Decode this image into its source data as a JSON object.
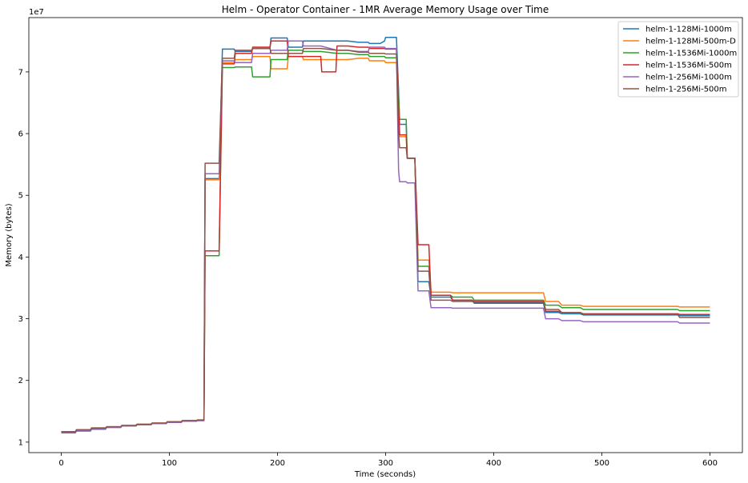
{
  "chart_data": {
    "type": "line",
    "title": "Helm - Operator Container - 1MR Average Memory Usage over Time",
    "xlabel": "Time (seconds)",
    "ylabel": "Memory (bytes)",
    "y_offset_label": "1e7",
    "xlim": [
      -30,
      630
    ],
    "ylim": [
      0.83,
      7.88
    ],
    "x_ticks": [
      0,
      100,
      200,
      300,
      400,
      500,
      600
    ],
    "y_ticks": [
      1,
      2,
      3,
      4,
      5,
      6,
      7
    ],
    "grid": false,
    "legend_position": "top-right",
    "series": [
      {
        "name": "helm-1-128Mi-1000m",
        "color": "#1f77b4",
        "x": [
          0,
          13,
          14,
          27,
          28,
          41,
          42,
          55,
          56,
          69,
          70,
          83,
          84,
          97,
          98,
          111,
          112,
          125,
          126,
          132,
          133,
          146,
          149,
          160,
          161,
          176,
          177,
          193,
          194,
          209,
          210,
          223,
          224,
          240,
          255,
          265,
          275,
          284,
          285,
          295,
          299,
          300,
          310,
          312,
          313,
          319,
          320,
          327,
          330,
          340,
          342,
          360,
          362,
          380,
          382,
          400,
          446,
          448,
          460,
          463,
          480,
          483,
          570,
          572,
          600
        ],
        "y": [
          1.15,
          1.15,
          1.18,
          1.18,
          1.21,
          1.21,
          1.24,
          1.24,
          1.26,
          1.26,
          1.28,
          1.28,
          1.3,
          1.3,
          1.32,
          1.32,
          1.34,
          1.34,
          1.35,
          1.35,
          5.27,
          5.27,
          7.37,
          7.37,
          7.33,
          7.33,
          7.38,
          7.38,
          7.55,
          7.55,
          7.4,
          7.4,
          7.5,
          7.5,
          7.5,
          7.5,
          7.48,
          7.48,
          7.46,
          7.46,
          7.5,
          7.56,
          7.56,
          6.7,
          6.15,
          6.15,
          5.6,
          5.6,
          3.6,
          3.6,
          3.35,
          3.35,
          3.3,
          3.3,
          3.25,
          3.25,
          3.25,
          3.1,
          3.1,
          3.08,
          3.08,
          3.06,
          3.06,
          3.05,
          3.05
        ]
      },
      {
        "name": "helm-1-128Mi-500m-D",
        "color": "#ff7f0e",
        "x": [
          0,
          13,
          14,
          27,
          28,
          41,
          42,
          55,
          56,
          69,
          70,
          83,
          84,
          97,
          98,
          111,
          112,
          125,
          126,
          132,
          133,
          146,
          149,
          160,
          161,
          176,
          177,
          193,
          194,
          209,
          210,
          223,
          224,
          240,
          255,
          265,
          275,
          284,
          285,
          299,
          300,
          310,
          312,
          313,
          319,
          320,
          327,
          330,
          340,
          342,
          360,
          362,
          380,
          382,
          400,
          446,
          448,
          460,
          463,
          480,
          483,
          570,
          572,
          600
        ],
        "y": [
          1.17,
          1.17,
          1.2,
          1.2,
          1.23,
          1.23,
          1.25,
          1.25,
          1.27,
          1.27,
          1.29,
          1.29,
          1.31,
          1.31,
          1.33,
          1.33,
          1.35,
          1.35,
          1.36,
          1.36,
          5.25,
          5.25,
          7.15,
          7.15,
          7.2,
          7.2,
          7.25,
          7.25,
          7.05,
          7.05,
          7.25,
          7.25,
          7.2,
          7.2,
          7.2,
          7.2,
          7.22,
          7.22,
          7.18,
          7.18,
          7.15,
          7.15,
          6.6,
          5.95,
          5.95,
          5.6,
          5.6,
          3.95,
          3.95,
          3.43,
          3.43,
          3.42,
          3.42,
          3.42,
          3.42,
          3.42,
          3.28,
          3.28,
          3.22,
          3.22,
          3.2,
          3.2,
          3.19,
          3.19
        ]
      },
      {
        "name": "helm-1-1536Mi-1000m",
        "color": "#2ca02c",
        "x": [
          0,
          13,
          14,
          27,
          28,
          41,
          42,
          55,
          56,
          69,
          70,
          83,
          84,
          97,
          98,
          111,
          112,
          125,
          126,
          132,
          133,
          146,
          149,
          160,
          161,
          176,
          177,
          193,
          194,
          209,
          210,
          223,
          224,
          240,
          255,
          265,
          275,
          284,
          285,
          299,
          300,
          310,
          312,
          313,
          319,
          320,
          327,
          330,
          340,
          342,
          360,
          362,
          380,
          382,
          400,
          446,
          448,
          460,
          463,
          480,
          483,
          570,
          572,
          600
        ],
        "y": [
          1.16,
          1.16,
          1.19,
          1.19,
          1.22,
          1.22,
          1.24,
          1.24,
          1.26,
          1.26,
          1.28,
          1.28,
          1.3,
          1.3,
          1.32,
          1.32,
          1.34,
          1.34,
          1.35,
          1.35,
          4.02,
          4.02,
          7.07,
          7.07,
          7.08,
          7.08,
          6.92,
          6.92,
          7.2,
          7.2,
          7.35,
          7.35,
          7.33,
          7.33,
          7.3,
          7.3,
          7.28,
          7.28,
          7.25,
          7.25,
          7.23,
          7.23,
          6.6,
          6.23,
          6.23,
          5.6,
          5.6,
          3.85,
          3.85,
          3.38,
          3.38,
          3.35,
          3.35,
          3.3,
          3.3,
          3.3,
          3.22,
          3.22,
          3.18,
          3.18,
          3.15,
          3.15,
          3.13,
          3.13
        ]
      },
      {
        "name": "helm-1-1536Mi-500m",
        "color": "#d62728",
        "x": [
          0,
          13,
          14,
          27,
          28,
          41,
          42,
          55,
          56,
          69,
          70,
          83,
          84,
          97,
          98,
          111,
          112,
          125,
          126,
          132,
          133,
          146,
          149,
          160,
          161,
          176,
          177,
          193,
          194,
          209,
          210,
          223,
          224,
          240,
          241,
          254,
          255,
          265,
          275,
          284,
          285,
          299,
          300,
          310,
          312,
          313,
          319,
          320,
          327,
          330,
          340,
          342,
          360,
          362,
          380,
          382,
          400,
          446,
          448,
          460,
          463,
          480,
          483,
          570,
          572,
          600
        ],
        "y": [
          1.16,
          1.16,
          1.19,
          1.19,
          1.22,
          1.22,
          1.24,
          1.24,
          1.26,
          1.26,
          1.28,
          1.28,
          1.3,
          1.3,
          1.32,
          1.32,
          1.34,
          1.34,
          1.35,
          1.35,
          4.1,
          4.1,
          7.13,
          7.13,
          7.3,
          7.3,
          7.4,
          7.4,
          7.5,
          7.5,
          7.25,
          7.25,
          7.25,
          7.25,
          7.0,
          7.0,
          7.42,
          7.42,
          7.4,
          7.4,
          7.38,
          7.38,
          7.37,
          7.37,
          6.4,
          5.98,
          5.98,
          5.6,
          5.6,
          4.2,
          4.2,
          3.38,
          3.38,
          3.3,
          3.3,
          3.28,
          3.28,
          3.28,
          3.12,
          3.12,
          3.1,
          3.1,
          3.08,
          3.08,
          3.07,
          3.07
        ]
      },
      {
        "name": "helm-1-256Mi-1000m",
        "color": "#9467bd",
        "x": [
          0,
          13,
          14,
          27,
          28,
          41,
          42,
          55,
          56,
          69,
          70,
          83,
          84,
          97,
          98,
          111,
          112,
          125,
          126,
          132,
          133,
          146,
          149,
          160,
          161,
          176,
          177,
          193,
          194,
          209,
          210,
          223,
          224,
          240,
          255,
          265,
          275,
          284,
          285,
          299,
          300,
          310,
          312,
          313,
          319,
          320,
          327,
          330,
          340,
          342,
          360,
          362,
          380,
          382,
          400,
          446,
          448,
          460,
          463,
          480,
          483,
          570,
          572,
          600
        ],
        "y": [
          1.16,
          1.16,
          1.19,
          1.19,
          1.22,
          1.22,
          1.24,
          1.24,
          1.26,
          1.26,
          1.28,
          1.28,
          1.3,
          1.3,
          1.32,
          1.32,
          1.34,
          1.34,
          1.35,
          1.35,
          5.35,
          5.35,
          7.18,
          7.18,
          7.15,
          7.15,
          7.3,
          7.3,
          7.35,
          7.35,
          7.5,
          7.5,
          7.42,
          7.42,
          7.35,
          7.35,
          7.33,
          7.33,
          7.4,
          7.4,
          7.38,
          7.38,
          5.4,
          5.22,
          5.22,
          5.2,
          5.2,
          3.45,
          3.45,
          3.18,
          3.18,
          3.17,
          3.17,
          3.17,
          3.17,
          3.17,
          3.0,
          3.0,
          2.97,
          2.97,
          2.95,
          2.95,
          2.93,
          2.93
        ]
      },
      {
        "name": "helm-1-256Mi-500m",
        "color": "#8c564b",
        "x": [
          0,
          13,
          14,
          27,
          28,
          41,
          42,
          55,
          56,
          69,
          70,
          83,
          84,
          97,
          98,
          111,
          112,
          125,
          126,
          132,
          133,
          146,
          149,
          160,
          161,
          176,
          177,
          193,
          194,
          209,
          210,
          223,
          224,
          240,
          255,
          265,
          275,
          284,
          285,
          299,
          300,
          310,
          312,
          313,
          319,
          320,
          327,
          330,
          340,
          342,
          360,
          362,
          380,
          382,
          400,
          446,
          448,
          460,
          463,
          480,
          483,
          570,
          572,
          600
        ],
        "y": [
          1.17,
          1.17,
          1.2,
          1.2,
          1.23,
          1.23,
          1.25,
          1.25,
          1.27,
          1.27,
          1.29,
          1.29,
          1.31,
          1.31,
          1.33,
          1.33,
          1.35,
          1.35,
          1.36,
          1.36,
          5.52,
          5.52,
          7.22,
          7.22,
          7.35,
          7.35,
          7.38,
          7.38,
          7.3,
          7.3,
          7.3,
          7.3,
          7.38,
          7.38,
          7.35,
          7.35,
          7.32,
          7.32,
          7.3,
          7.3,
          7.29,
          7.29,
          6.0,
          5.77,
          5.77,
          5.6,
          5.6,
          3.77,
          3.77,
          3.3,
          3.3,
          3.28,
          3.28,
          3.27,
          3.27,
          3.27,
          3.15,
          3.15,
          3.1,
          3.1,
          3.07,
          3.07,
          3.02,
          3.02
        ]
      }
    ]
  }
}
